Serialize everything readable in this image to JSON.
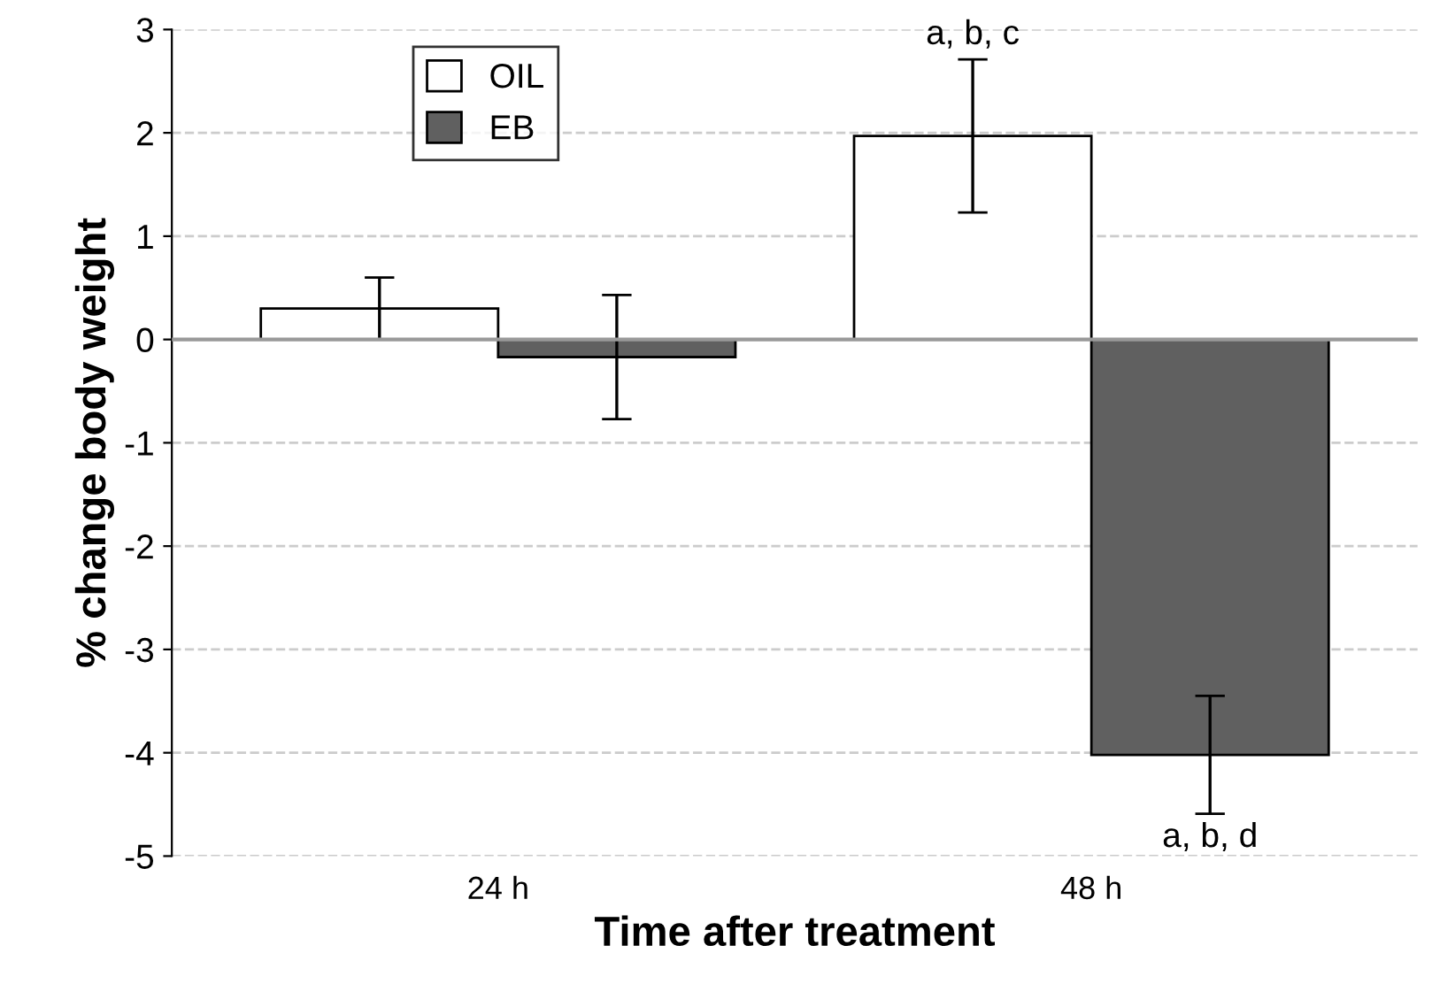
{
  "chart_data": {
    "type": "bar",
    "xlabel": "Time after treatment",
    "ylabel": "% change body weight",
    "categories": [
      "24 h",
      "48 h"
    ],
    "series": [
      {
        "name": "OIL",
        "color": "#ffffff",
        "values": [
          0.3,
          1.97
        ],
        "errors": [
          0.3,
          0.74
        ]
      },
      {
        "name": "EB",
        "color": "#606060",
        "values": [
          -0.17,
          -4.02
        ],
        "errors": [
          0.6,
          0.57
        ]
      }
    ],
    "ylim": [
      -5,
      3
    ],
    "yticks": [
      -5,
      -4,
      -3,
      -2,
      -1,
      0,
      1,
      2,
      3
    ],
    "grid": "y",
    "legend": "top left",
    "ref_lines": [
      {
        "axis": "y",
        "value": 0,
        "color": "#999999"
      }
    ],
    "annotations": [
      "a, b, c",
      "a, b, d"
    ]
  }
}
